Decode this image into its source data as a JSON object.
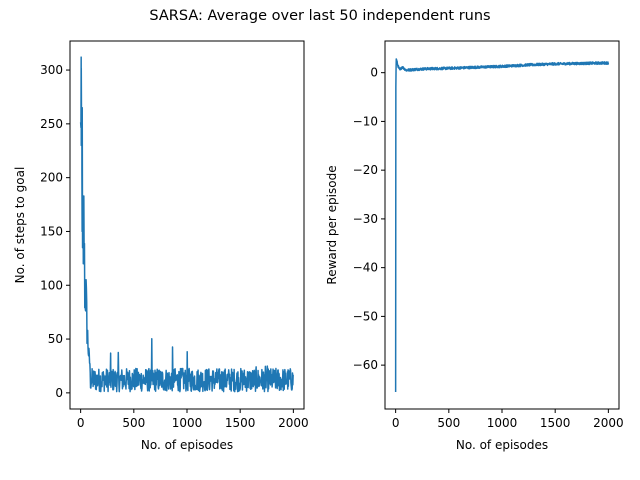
{
  "figure": {
    "title": "SARSA: Average over last 50 independent runs"
  },
  "chart_data": [
    {
      "type": "line",
      "title": "",
      "xlabel": "No. of episodes",
      "ylabel": "No. of steps to goal",
      "xlim": [
        -100,
        2100
      ],
      "ylim": [
        -15,
        327
      ],
      "xticks": [
        0,
        500,
        1000,
        1500,
        2000
      ],
      "yticks": [
        0,
        50,
        100,
        150,
        200,
        250,
        300
      ],
      "xtick_labels": [
        "0",
        "500",
        "1000",
        "1500",
        "2000"
      ],
      "ytick_labels": [
        "0",
        "50",
        "100",
        "150",
        "200",
        "250",
        "300"
      ],
      "grid": false,
      "color": "#1f77b4",
      "series": [
        {
          "x": [
            0,
            5,
            10,
            15,
            20,
            30,
            40,
            50,
            60,
            80,
            100,
            150,
            200,
            300,
            400,
            500,
            600,
            700,
            800,
            900,
            1000,
            1100,
            1200,
            1300,
            1400,
            1500,
            1600,
            1700,
            1800,
            1900,
            2000
          ],
          "y": [
            230,
            312,
            150,
            240,
            120,
            160,
            90,
            93,
            60,
            30,
            25,
            18,
            15,
            14,
            13,
            12,
            12,
            12,
            12,
            12,
            12,
            12,
            12,
            12,
            12,
            12,
            12,
            12,
            12,
            12,
            12
          ],
          "noise_band": {
            "lower": 1,
            "upper_peaks": [
              47,
              40,
              44,
              52,
              44,
              42,
              42,
              30,
              25,
              25
            ]
          }
        }
      ]
    },
    {
      "type": "line",
      "title": "",
      "xlabel": "No. of episodes",
      "ylabel": "Reward per episode",
      "xlim": [
        -100,
        2100
      ],
      "ylim": [
        -69,
        6.5
      ],
      "xticks": [
        0,
        500,
        1000,
        1500,
        2000
      ],
      "yticks": [
        -60,
        -50,
        -40,
        -30,
        -20,
        -10,
        0
      ],
      "xtick_labels": [
        "0",
        "500",
        "1000",
        "1500",
        "2000"
      ],
      "ytick_labels": [
        "−60",
        "−50",
        "−40",
        "−30",
        "−20",
        "−10",
        "0"
      ],
      "grid": false,
      "color": "#1f77b4",
      "series": [
        {
          "x": [
            0,
            2,
            5,
            10,
            20,
            40,
            60,
            100,
            150,
            200,
            300,
            500,
            750,
            1000,
            1250,
            1500,
            1750,
            2000
          ],
          "y": [
            -65.5,
            -3,
            2.8,
            2.5,
            1.5,
            0.5,
            1.2,
            0.5,
            0.6,
            0.7,
            0.8,
            0.9,
            1.1,
            1.3,
            1.6,
            1.8,
            1.9,
            2.0
          ]
        }
      ]
    }
  ]
}
